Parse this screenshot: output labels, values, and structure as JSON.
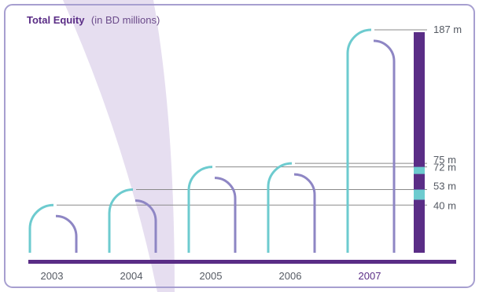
{
  "chart_data": {
    "type": "bar",
    "title": "Total Equity",
    "subtitle": "(in BD millions)",
    "categories": [
      "2003",
      "2004",
      "2005",
      "2006",
      "2007"
    ],
    "values": [
      40,
      53,
      72,
      75,
      187
    ],
    "value_labels": [
      "40 m",
      "53 m",
      "72 m",
      "75 m",
      "187 m"
    ],
    "highlight_category": "2007",
    "unit": "m",
    "colors": {
      "accent_purple": "#5a2d86",
      "teal": "#6dcbcf",
      "lavender": "#8e86c4",
      "light_band": "#e6def0",
      "frame": "#a79fd0",
      "guide_line": "#8a8a8a"
    }
  }
}
